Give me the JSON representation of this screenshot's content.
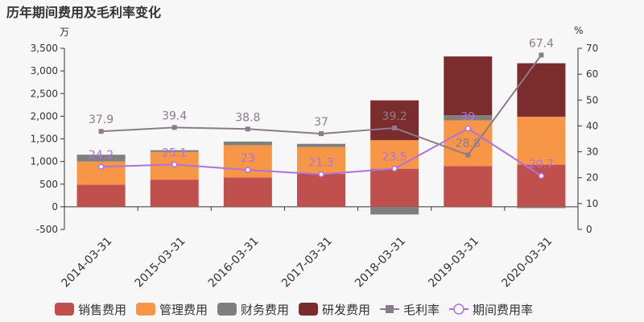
{
  "title": "历年期间费用及毛利率变化",
  "chart_data": {
    "type": "bar",
    "stacked": true,
    "categories": [
      "2014-03-31",
      "2015-03-31",
      "2016-03-31",
      "2017-03-31",
      "2018-03-31",
      "2019-03-31",
      "2020-03-31"
    ],
    "ylabel_left": "万",
    "ylabel_right": "%",
    "ylim_left": [
      -500,
      3500
    ],
    "yticks_left": [
      -500,
      0,
      500,
      1000,
      1500,
      2000,
      2500,
      3000,
      3500
    ],
    "ytick_labels_left": [
      "-500",
      "0",
      "500",
      "1,000",
      "1,500",
      "2,000",
      "2,500",
      "3,000",
      "3,500"
    ],
    "ylim_right": [
      0,
      70
    ],
    "yticks_right": [
      0,
      10,
      20,
      30,
      40,
      50,
      60,
      70
    ],
    "series": [
      {
        "name": "销售费用",
        "color": "#c0504d",
        "values": [
          490,
          600,
          650,
          730,
          840,
          900,
          930
        ]
      },
      {
        "name": "管理费用",
        "color": "#f79646",
        "values": [
          510,
          610,
          710,
          590,
          630,
          1010,
          1060
        ]
      },
      {
        "name": "财务费用",
        "color": "#7f7f7f",
        "values": [
          150,
          40,
          80,
          70,
          -170,
          110,
          -30
        ]
      },
      {
        "name": "研发费用",
        "color": "#7b2c2c",
        "values": [
          0,
          0,
          0,
          0,
          880,
          1300,
          1180
        ]
      }
    ],
    "lines": [
      {
        "name": "毛利率",
        "color": "#8c7b8c",
        "marker": "square",
        "values": [
          37.9,
          39.4,
          38.8,
          37,
          39.2,
          28.8,
          67.4
        ],
        "labels": [
          "37.9",
          "39.4",
          "38.8",
          "37",
          "39.2",
          "28.8",
          "67.4"
        ]
      },
      {
        "name": "期间费用率",
        "color": "#b070e0",
        "marker": "circle",
        "values": [
          24.2,
          25.1,
          23,
          21.3,
          23.5,
          39,
          20.7
        ],
        "labels": [
          "24.2",
          "25.1",
          "23",
          "21.3",
          "23.5",
          "39",
          "20.7"
        ]
      }
    ],
    "legend": "bottom"
  }
}
